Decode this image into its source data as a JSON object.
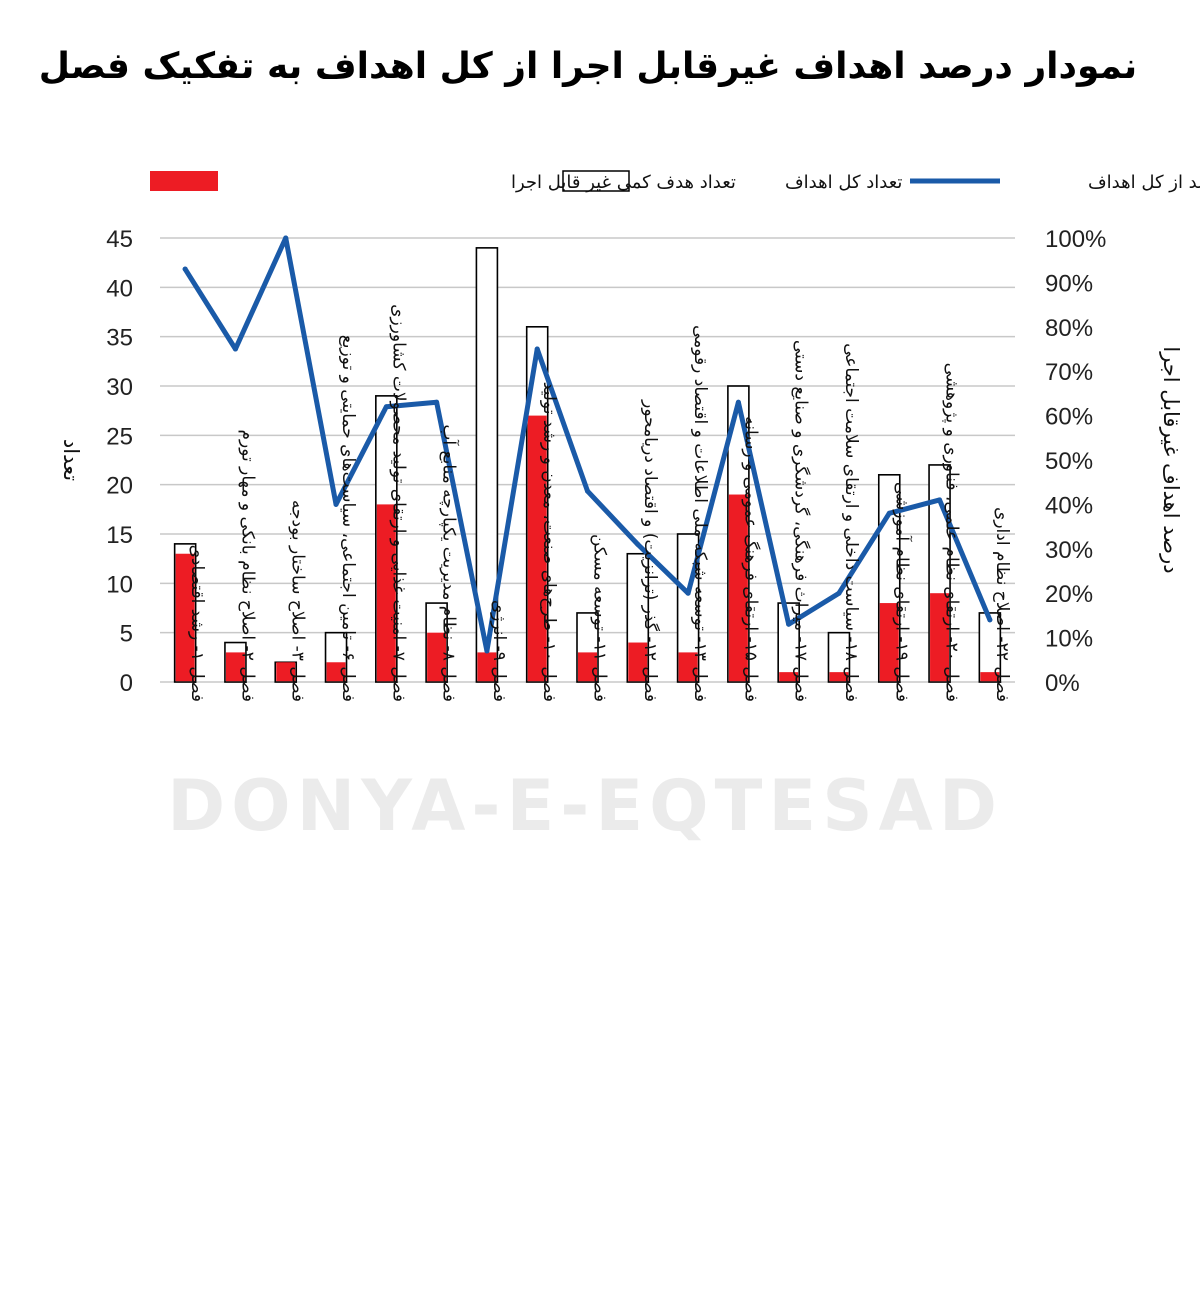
{
  "chart_data": {
    "type": "bar",
    "title": "نمودار درصد اهداف غیرقابل اجرا از کل اهداف به تفکیک فصل",
    "watermark": "DONYA-E-EQTESAD",
    "ylabel": "تعداد",
    "y2label": "درصد اهداف غیرقابل اجرا",
    "ylim": [
      0,
      45
    ],
    "y2lim": [
      0,
      1
    ],
    "yticks": [
      "0",
      "5",
      "10",
      "15",
      "20",
      "25",
      "30",
      "35",
      "40",
      "45"
    ],
    "y2ticks": [
      "0%",
      "10%",
      "20%",
      "30%",
      "40%",
      "50%",
      "60%",
      "70%",
      "80%",
      "90%",
      "100%"
    ],
    "grid": true,
    "legend_position": "top",
    "categories": [
      "فصل ۱- رشد اقتصادی",
      "فصل ۲- اصلاح نظام بانکی و مهار تورم",
      "فصل ۳- اصلاح ساختار بودجه",
      "فصل ۶- تامین اجتماعی، سیاست‌های حمایتی و توزیع",
      "فصل ۷- امنیت غذایی و ارتقای تولید محصولات کشاورزی",
      "فصل ۸- نظام مدیریت یکپارچه منابع آب",
      "فصل ۹- انرژی",
      "فصل ۱۰- طرح‌های صنعت، معدن و رشد تولید",
      "فصل ۱۱- توسعه مسکن",
      "فصل ۱۲- گذر (ترانزیت) و اقتصاد دریامحور",
      "فصل ۱۳- توسعه شبکه ملی اطلاعات و اقتصاد رقومی",
      "فصل ۱۵- ارتقای فرهنگ عمومی و رسانه",
      "فصل ۱۷- میراث فرهنگی، گردشگری و صنایع دستی",
      "فصل ۱۸- سیاست داخلی و ارتقای سلامت اجتماعی",
      "فصل ۱۹- ارتقای نظام آموزشی",
      "فصل ۲۰- ارتقای نظام علمی، فناوری و پژوهشی",
      "فصل ۲۲- اصلاح نظام اداری"
    ],
    "series": [
      {
        "name": "تعداد هدف کمی غیر قابل اجرا",
        "type": "bar",
        "color": "#ed1c24",
        "values": [
          13,
          3,
          2,
          2,
          18,
          5,
          3,
          27,
          3,
          4,
          3,
          19,
          1,
          1,
          8,
          9,
          1
        ]
      },
      {
        "name": "تعداد کل اهداف",
        "type": "bar-outline",
        "color": "#000000",
        "values": [
          14,
          4,
          2,
          5,
          29,
          8,
          44,
          36,
          7,
          13,
          15,
          30,
          8,
          5,
          21,
          22,
          7
        ]
      },
      {
        "name": "درصد از کل اهداف",
        "type": "line",
        "axis": "right",
        "color": "#1a5aa8",
        "values": [
          0.93,
          0.75,
          1.0,
          0.4,
          0.62,
          0.63,
          0.07,
          0.75,
          0.43,
          0.31,
          0.2,
          0.63,
          0.13,
          0.2,
          0.38,
          0.41,
          0.14
        ]
      }
    ]
  }
}
